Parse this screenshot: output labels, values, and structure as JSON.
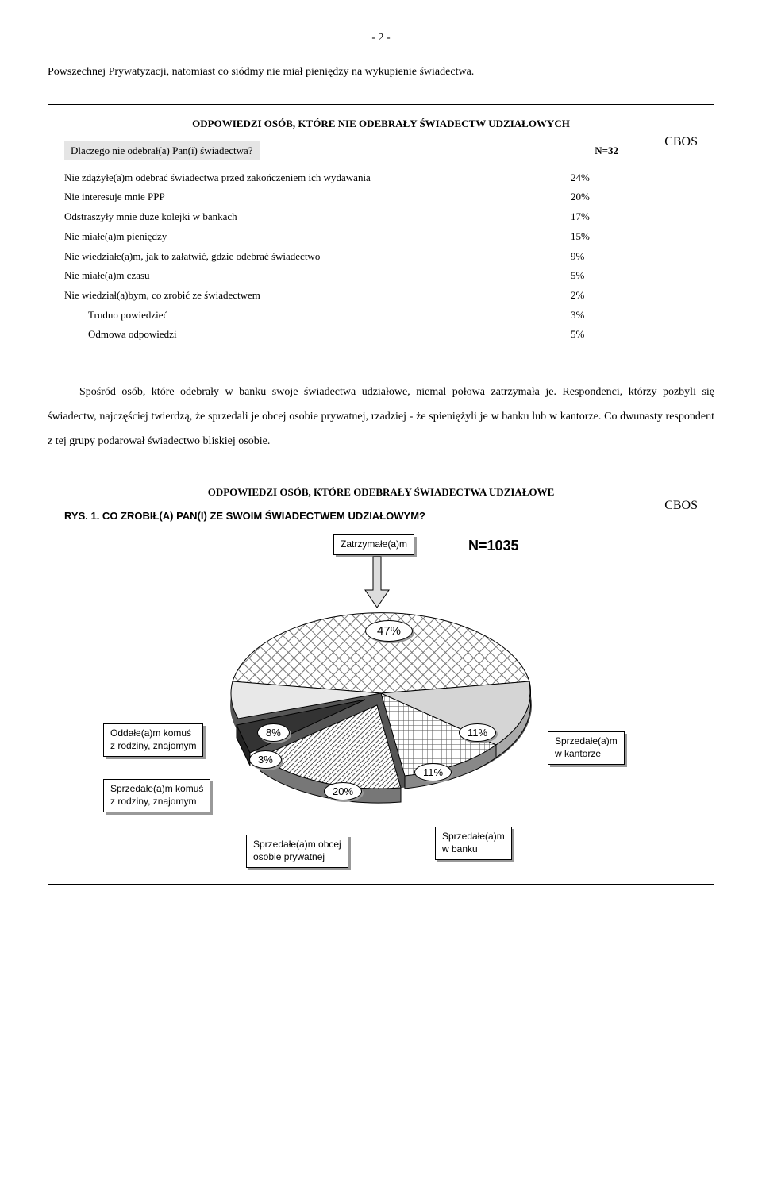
{
  "page_number": "- 2 -",
  "intro": "Powszechnej Prywatyzacji, natomiast co siódmy nie miał pieniędzy na wykupienie świadectwa.",
  "box1": {
    "heading": "ODPOWIEDZI OSÓB, KTÓRE NIE ODEBRAŁY ŚWIADECTW UDZIAŁOWYCH",
    "cbos": "CBOS",
    "question": "Dlaczego nie odebrał(a) Pan(i) świadectwa?",
    "n": "N=32",
    "rows": [
      {
        "label": "Nie zdążyłe(a)m odebrać świadectwa przed zakończeniem ich wydawania",
        "val": "24%"
      },
      {
        "label": "Nie interesuje mnie PPP",
        "val": "20%"
      },
      {
        "label": "Odstraszyły mnie duże kolejki w bankach",
        "val": "17%"
      },
      {
        "label": "Nie miałe(a)m pieniędzy",
        "val": "15%"
      },
      {
        "label": "Nie wiedziałe(a)m, jak to załatwić, gdzie odebrać świadectwo",
        "val": "9%"
      },
      {
        "label": "Nie miałe(a)m czasu",
        "val": "5%"
      },
      {
        "label": "Nie wiedział(a)bym, co zrobić ze świadectwem",
        "val": "2%"
      },
      {
        "label": "Trudno powiedzieć",
        "val": "3%",
        "indent": true
      },
      {
        "label": "Odmowa odpowiedzi",
        "val": "5%",
        "indent": true
      }
    ]
  },
  "body": "Spośród osób, które odebrały w banku swoje świadectwa udziałowe, niemal połowa zatrzymała je. Respondenci, którzy pozbyli się świadectw, najczęściej twierdzą, że sprzedali je obcej osobie prywatnej, rzadziej - że spieniężyli je w banku lub w kantorze. Co dwunasty respondent z tej grupy podarował świadectwo bliskiej osobie.",
  "box2": {
    "heading": "ODPOWIEDZI OSÓB, KTÓRE ODEBRAŁY ŚWIADECTWA UDZIAŁOWE",
    "cbos": "CBOS",
    "chart_title": "RYS. 1. CO ZROBIŁ(A) PAN(I) ZE SWOIM ŚWIADECTWEM UDZIAŁOWYM?",
    "n_total": "N=1035",
    "slices": {
      "zatrzymalem": {
        "label": "Zatrzymałe(a)m",
        "pct": "47%",
        "value": 47
      },
      "oddalem": {
        "label": "Oddałe(a)m komuś\nz rodziny, znajomym",
        "pct": "8%",
        "value": 8
      },
      "sprzed_rodz": {
        "label": "Sprzedałe(a)m komuś\nz rodziny, znajomym",
        "pct": "3%",
        "value": 3
      },
      "sprzed_obcej": {
        "label": "Sprzedałe(a)m obcej\nosobie prywatnej",
        "pct": "20%",
        "value": 20
      },
      "sprzed_banku": {
        "label": "Sprzedałe(a)m\nw banku",
        "pct": "11%",
        "value": 11
      },
      "sprzed_kantor": {
        "label": "Sprzedałe(a)m\nw kantorze",
        "pct": "11%",
        "value": 11
      }
    },
    "colors": {
      "crosshatch": "#808080",
      "dark": "#3a3a3a",
      "stripe": "#9a9a9a",
      "grid": "#707070",
      "light": "#dcdcdc"
    }
  }
}
